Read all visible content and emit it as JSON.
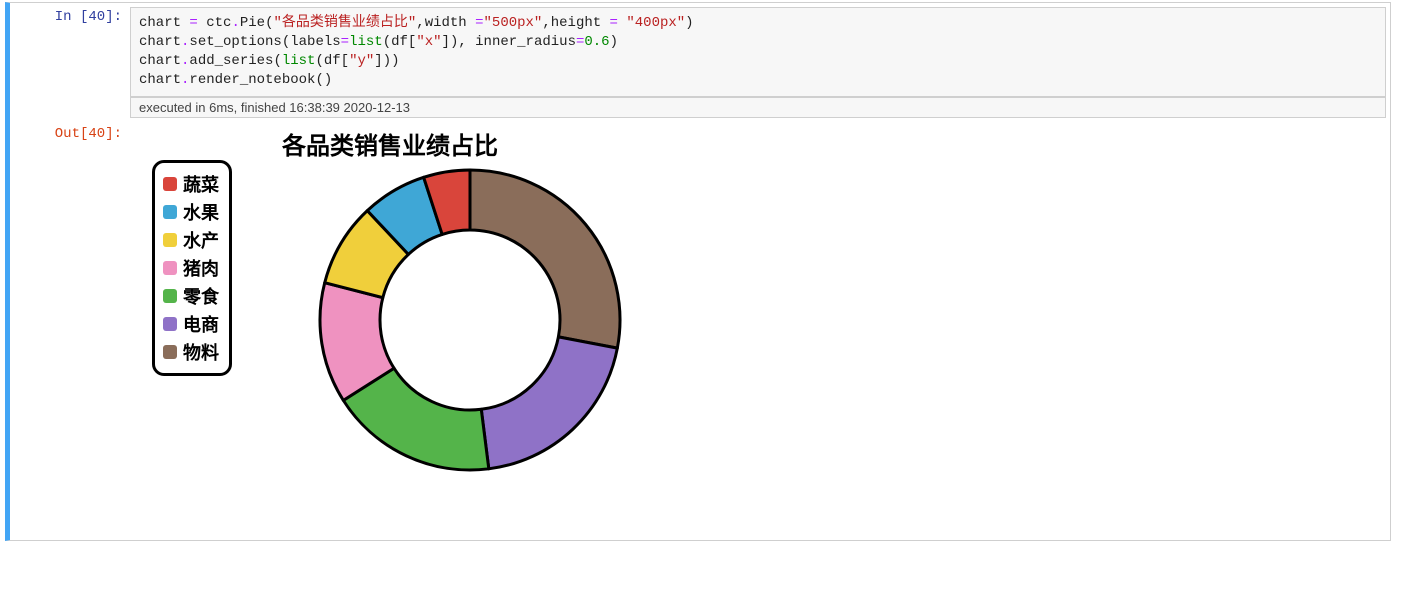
{
  "cell": {
    "in_prompt": "In  [40]:",
    "out_prompt": "Out[40]:",
    "exec_info": "executed in 6ms, finished 16:38:39 2020-12-13",
    "code_tokens": [
      [
        {
          "t": "chart ",
          "c": "c-id"
        },
        {
          "t": "=",
          "c": "c-op"
        },
        {
          "t": " ctc",
          "c": "c-id"
        },
        {
          "t": ".",
          "c": "c-op"
        },
        {
          "t": "Pie",
          "c": "c-id"
        },
        {
          "t": "(",
          "c": "c-id"
        },
        {
          "t": "\"各品类销售业绩占比\"",
          "c": "c-str"
        },
        {
          "t": ",",
          "c": "c-id"
        },
        {
          "t": "width ",
          "c": "c-id"
        },
        {
          "t": "=",
          "c": "c-op"
        },
        {
          "t": "\"500px\"",
          "c": "c-str"
        },
        {
          "t": ",",
          "c": "c-id"
        },
        {
          "t": "height ",
          "c": "c-id"
        },
        {
          "t": "=",
          "c": "c-op"
        },
        {
          "t": " ",
          "c": "c-id"
        },
        {
          "t": "\"400px\"",
          "c": "c-str"
        },
        {
          "t": ")",
          "c": "c-id"
        }
      ],
      [
        {
          "t": "chart",
          "c": "c-id"
        },
        {
          "t": ".",
          "c": "c-op"
        },
        {
          "t": "set_options",
          "c": "c-id"
        },
        {
          "t": "(",
          "c": "c-id"
        },
        {
          "t": "labels",
          "c": "c-id"
        },
        {
          "t": "=",
          "c": "c-op"
        },
        {
          "t": "list",
          "c": "c-kw"
        },
        {
          "t": "(",
          "c": "c-id"
        },
        {
          "t": "df",
          "c": "c-id"
        },
        {
          "t": "[",
          "c": "c-id"
        },
        {
          "t": "\"x\"",
          "c": "c-str"
        },
        {
          "t": "]",
          "c": "c-id"
        },
        {
          "t": ")",
          "c": "c-id"
        },
        {
          "t": ",",
          "c": "c-id"
        },
        {
          "t": " inner_radius",
          "c": "c-id"
        },
        {
          "t": "=",
          "c": "c-op"
        },
        {
          "t": "0.6",
          "c": "c-num"
        },
        {
          "t": ")",
          "c": "c-id"
        }
      ],
      [
        {
          "t": "chart",
          "c": "c-id"
        },
        {
          "t": ".",
          "c": "c-op"
        },
        {
          "t": "add_series",
          "c": "c-id"
        },
        {
          "t": "(",
          "c": "c-id"
        },
        {
          "t": "list",
          "c": "c-kw"
        },
        {
          "t": "(",
          "c": "c-id"
        },
        {
          "t": "df",
          "c": "c-id"
        },
        {
          "t": "[",
          "c": "c-id"
        },
        {
          "t": "\"y\"",
          "c": "c-str"
        },
        {
          "t": "]",
          "c": "c-id"
        },
        {
          "t": ")",
          "c": "c-id"
        },
        {
          "t": ")",
          "c": "c-id"
        }
      ],
      [
        {
          "t": "chart",
          "c": "c-id"
        },
        {
          "t": ".",
          "c": "c-op"
        },
        {
          "t": "render_notebook",
          "c": "c-id"
        },
        {
          "t": "()",
          "c": "c-id"
        }
      ]
    ]
  },
  "chart": {
    "type": "pie",
    "title": "各品类销售业绩占比",
    "title_fontsize": 24,
    "title_weight": 900,
    "inner_radius": 0.6,
    "outer_radius": 1.0,
    "stroke_color": "#000000",
    "stroke_width": 3,
    "background": "#ffffff",
    "legend": {
      "position": "top-left",
      "border_color": "#000000",
      "border_width": 3,
      "border_radius": 12,
      "items": [
        {
          "label": "蔬菜",
          "color": "#d9453b"
        },
        {
          "label": "水果",
          "color": "#3fa7d6"
        },
        {
          "label": "水产",
          "color": "#f0cf3b"
        },
        {
          "label": "猪肉",
          "color": "#ef92c0"
        },
        {
          "label": "零食",
          "color": "#54b44a"
        },
        {
          "label": "电商",
          "color": "#8f72c7"
        },
        {
          "label": "物料",
          "color": "#8a6d5a"
        }
      ]
    },
    "slices": [
      {
        "label": "物料",
        "value": 28,
        "color": "#8a6d5a"
      },
      {
        "label": "电商",
        "value": 20,
        "color": "#8f72c7"
      },
      {
        "label": "零食",
        "value": 18,
        "color": "#54b44a"
      },
      {
        "label": "猪肉",
        "value": 13,
        "color": "#ef92c0"
      },
      {
        "label": "水产",
        "value": 9,
        "color": "#f0cf3b"
      },
      {
        "label": "水果",
        "value": 7,
        "color": "#3fa7d6"
      },
      {
        "label": "蔬菜",
        "value": 5,
        "color": "#d9453b"
      }
    ],
    "start_angle_deg": -90
  }
}
